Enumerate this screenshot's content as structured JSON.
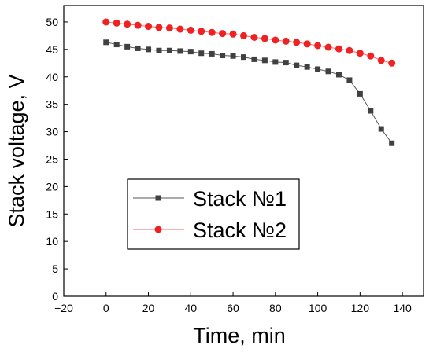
{
  "chart_data": {
    "type": "scatter",
    "title": "",
    "xlabel": "Time, min",
    "ylabel": "Stack voltage, V",
    "xlim": [
      -20,
      150
    ],
    "ylim": [
      0,
      53
    ],
    "x_ticks": [
      -20,
      0,
      20,
      40,
      60,
      80,
      100,
      120,
      140
    ],
    "y_ticks": [
      0,
      5,
      10,
      15,
      20,
      25,
      30,
      35,
      40,
      45,
      50
    ],
    "grid": false,
    "legend": {
      "position": "lower-left-center",
      "entries": [
        "Stack №1",
        "Stack №2"
      ]
    },
    "series": [
      {
        "name": "Stack №1",
        "marker": "square",
        "line": true,
        "color": "#404040",
        "line_color": "#555555",
        "x": [
          0,
          5,
          10,
          15,
          20,
          25,
          30,
          35,
          40,
          45,
          50,
          55,
          60,
          65,
          70,
          75,
          80,
          85,
          90,
          95,
          100,
          105,
          110,
          115,
          120,
          125,
          130,
          135
        ],
        "y": [
          46.3,
          45.9,
          45.5,
          45.2,
          45.0,
          44.8,
          44.8,
          44.7,
          44.6,
          44.3,
          44.2,
          43.9,
          43.8,
          43.6,
          43.2,
          43.0,
          42.7,
          42.6,
          42.1,
          41.8,
          41.4,
          41.0,
          40.4,
          39.4,
          36.9,
          33.8,
          30.5,
          27.9
        ]
      },
      {
        "name": "Stack №2",
        "marker": "circle",
        "line": true,
        "color": "#ee2222",
        "line_color": "#ff6666",
        "x": [
          0,
          5,
          10,
          15,
          20,
          25,
          30,
          35,
          40,
          45,
          50,
          55,
          60,
          65,
          70,
          75,
          80,
          85,
          90,
          95,
          100,
          105,
          110,
          115,
          120,
          125,
          130,
          135
        ],
        "y": [
          50.0,
          49.8,
          49.6,
          49.4,
          49.2,
          49.0,
          48.9,
          48.7,
          48.5,
          48.3,
          48.1,
          47.9,
          47.8,
          47.5,
          47.2,
          47.0,
          46.7,
          46.5,
          46.3,
          46.0,
          45.7,
          45.4,
          45.1,
          44.8,
          44.3,
          43.8,
          43.0,
          42.5
        ]
      }
    ]
  }
}
